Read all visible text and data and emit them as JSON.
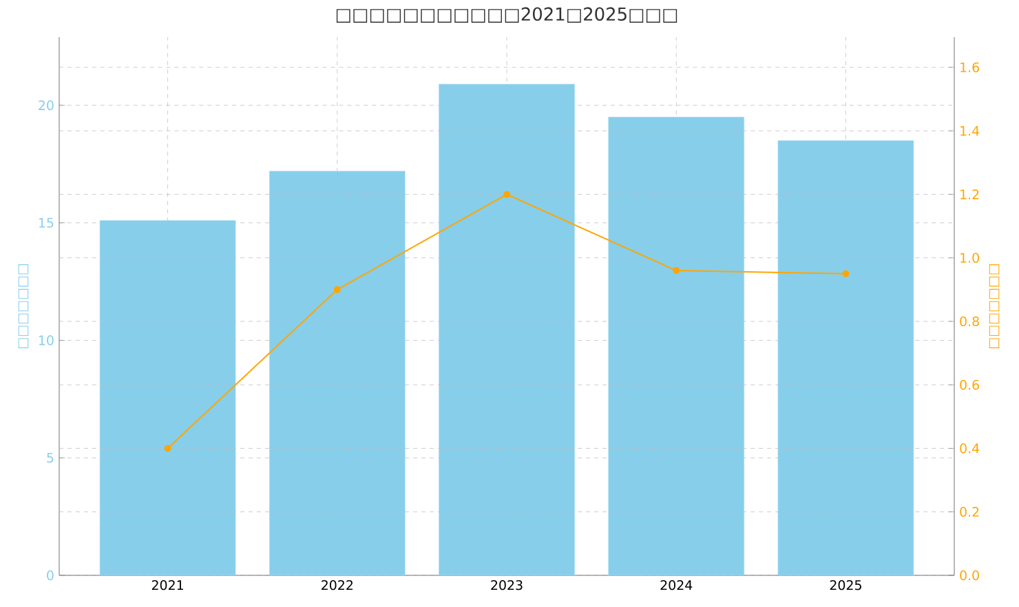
{
  "chart_data": {
    "type": "bar",
    "title": "□□□□□□□□□□□2021□2025□□□",
    "ylabel": "□□□□□□□",
    "y2label": "□□□□□□□",
    "categories": [
      "2021",
      "2022",
      "2023",
      "2024",
      "2025"
    ],
    "series": [
      {
        "color": "#87ceeb",
        "values": [
          15.1,
          17.2,
          20.9,
          19.5,
          18.5
        ]
      },
      {
        "type": "line",
        "axis": "y2",
        "color": "#ffa500",
        "marker": "circle",
        "values": [
          0.4,
          0.9,
          1.2,
          0.96,
          0.95
        ]
      }
    ],
    "ylim": [
      0,
      22.9
    ],
    "yticks": [
      0,
      5,
      10,
      15,
      20
    ],
    "y2lim": [
      0,
      1.695
    ],
    "y2ticks": [
      {
        "value": 0,
        "label": "0.0"
      },
      {
        "value": 0.2,
        "label": "0.2"
      },
      {
        "value": 0.4,
        "label": "0.4"
      },
      {
        "value": 0.6,
        "label": "0.6"
      },
      {
        "value": 0.8,
        "label": "0.8"
      },
      {
        "value": 1.0,
        "label": "1.0"
      },
      {
        "value": 1.2,
        "label": "1.2"
      },
      {
        "value": 1.4,
        "label": "1.4"
      },
      {
        "value": 1.6,
        "label": "1.6"
      }
    ],
    "grid": true
  }
}
